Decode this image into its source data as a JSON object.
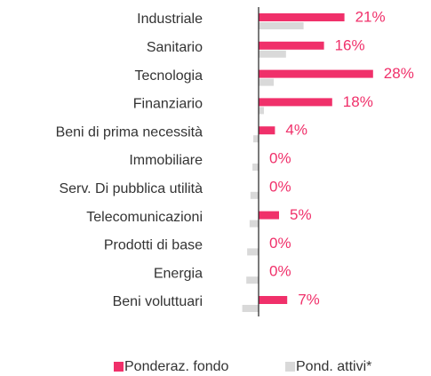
{
  "chart_data": {
    "type": "bar",
    "orientation": "horizontal",
    "categories": [
      "Industriale",
      "Sanitario",
      "Tecnologia",
      "Finanziario",
      "Beni di prima necessità",
      "Immobiliare",
      "Serv. Di pubblica utilità",
      "Telecomunicazioni",
      "Prodotti di base",
      "Energia",
      "Beni voluttuari"
    ],
    "series": [
      {
        "name": "Ponderaz. fondo",
        "color": "#f0306a",
        "values": [
          21,
          16,
          28,
          18,
          4,
          0,
          0,
          5,
          0,
          0,
          7
        ],
        "value_labels": [
          "21%",
          "16%",
          "28%",
          "18%",
          "4%",
          "0%",
          "0%",
          "5%",
          "0%",
          "0%",
          "7%"
        ]
      },
      {
        "name": "Pond. attivi*",
        "color": "#d9d9d9",
        "values": [
          11,
          6.7,
          3.7,
          1.3,
          -1.3,
          -1.5,
          -2,
          -2.2,
          -2.8,
          -3,
          -4
        ]
      }
    ],
    "xlim": [
      -5,
      30
    ],
    "legend": "bottom"
  }
}
